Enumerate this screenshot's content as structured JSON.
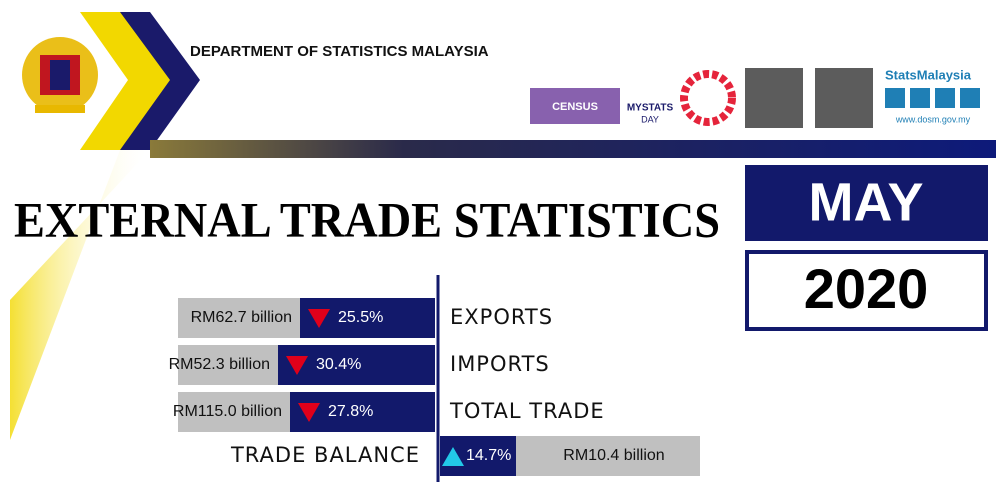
{
  "header": {
    "organization": "DEPARTMENT OF STATISTICS MALAYSIA",
    "logos": {
      "census": "CENSUS",
      "mystats": "MYSTATS",
      "day": "DAY",
      "brand": "StatsMalaysia",
      "website": "www.dosm.gov.my"
    }
  },
  "title": "EXTERNAL TRADE STATISTICS",
  "period": {
    "month": "MAY",
    "year": "2020"
  },
  "rows": [
    {
      "label": "EXPORTS",
      "amount": "RM62.7 billion",
      "change": "25.5%",
      "direction": "down"
    },
    {
      "label": "IMPORTS",
      "amount": "RM52.3 billion",
      "change": "30.4%",
      "direction": "down"
    },
    {
      "label": "TOTAL TRADE",
      "amount": "RM115.0 billion",
      "change": "27.8%",
      "direction": "down"
    }
  ],
  "balance": {
    "label": "TRADE BALANCE",
    "amount": "RM10.4 billion",
    "change": "14.7%",
    "direction": "up"
  }
}
